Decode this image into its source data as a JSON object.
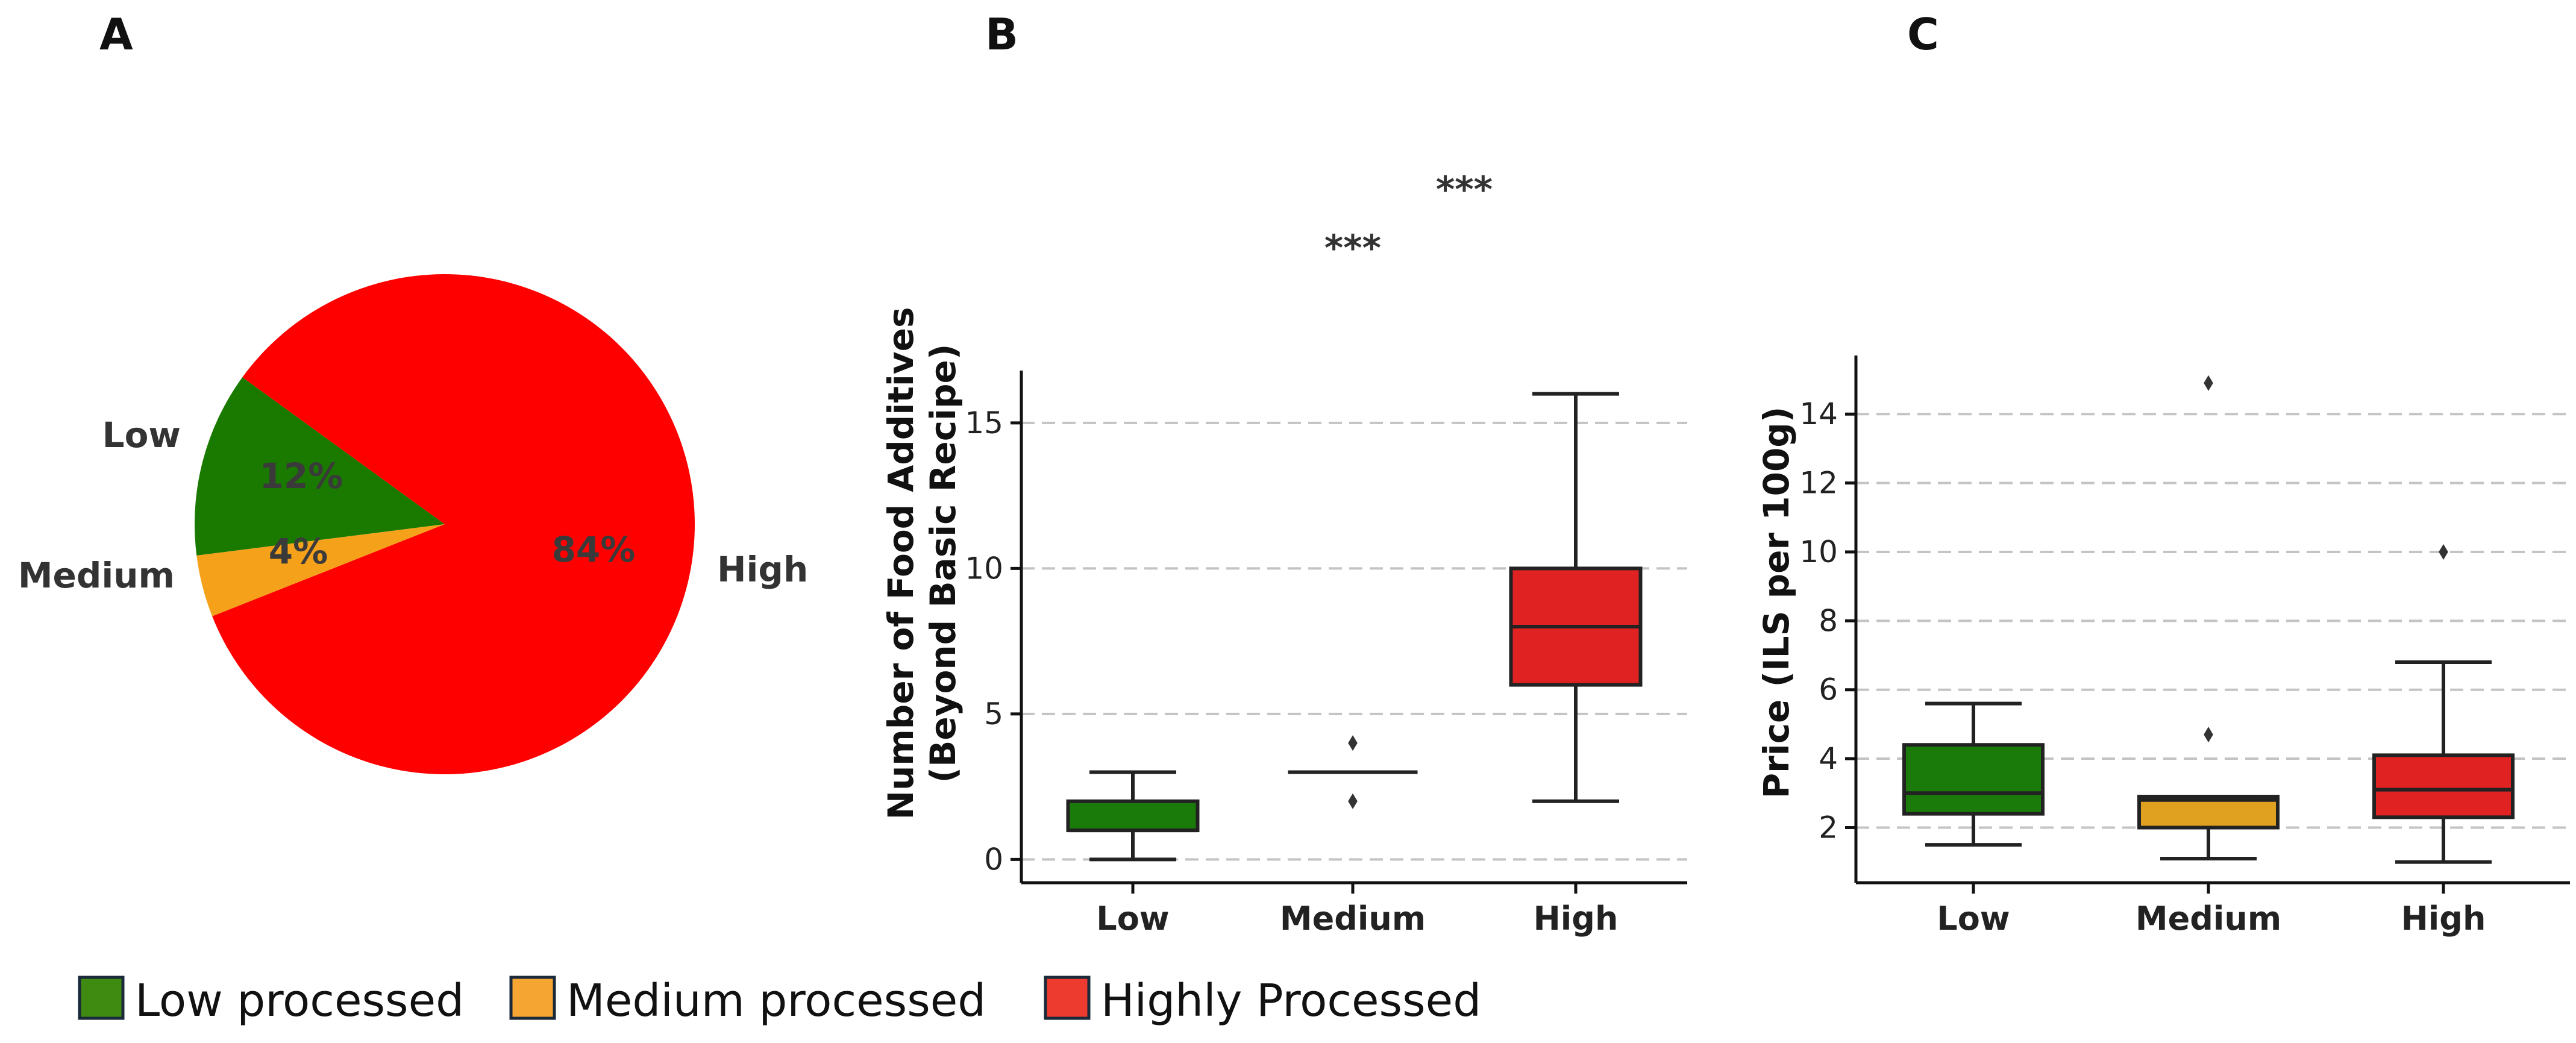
{
  "panel_labels": [
    "A",
    "B",
    "C"
  ],
  "chart_data": [
    {
      "type": "pie",
      "panel": "A",
      "slices": [
        {
          "label": "Low",
          "value": 12,
          "pct_label": "12%",
          "color": "#1a7a00"
        },
        {
          "label": "Medium",
          "value": 4,
          "pct_label": "4%",
          "color": "#f5a21a"
        },
        {
          "label": "High",
          "value": 84,
          "pct_label": "84%",
          "color": "#ff0000"
        }
      ]
    },
    {
      "type": "box",
      "panel": "B",
      "ylabel": "Number of Food Additives",
      "ylabel2": "(Beyond Basic Recipe)",
      "ylim": [
        -0.8,
        16.8
      ],
      "yticks": [
        0,
        5,
        10,
        15
      ],
      "grid": true,
      "categories": [
        "Low",
        "Medium",
        "High"
      ],
      "boxes": [
        {
          "category": "Low",
          "whislo": 0,
          "q1": 1,
          "med": 1,
          "q3": 2,
          "whishi": 3,
          "fliers": [],
          "color": "#1a7a0a"
        },
        {
          "category": "Medium",
          "whislo": 3,
          "q1": 3,
          "med": 3,
          "q3": 3,
          "whishi": 3,
          "fliers": [
            4,
            2
          ],
          "color": "#e0a020"
        },
        {
          "category": "High",
          "whislo": 2,
          "q1": 6,
          "med": 8,
          "q3": 10,
          "whishi": 16,
          "fliers": [],
          "color": "#e02222"
        }
      ],
      "annotations": [
        "***",
        "***"
      ]
    },
    {
      "type": "box",
      "panel": "C",
      "ylabel": "Price (ILS per 100g)",
      "ylim": [
        0.4,
        15.7
      ],
      "yticks": [
        2,
        4,
        6,
        8,
        10,
        12,
        14
      ],
      "grid": true,
      "categories": [
        "Low",
        "Medium",
        "High"
      ],
      "boxes": [
        {
          "category": "Low",
          "whislo": 1.5,
          "q1": 2.4,
          "med": 3.0,
          "q3": 4.4,
          "whishi": 5.6,
          "fliers": [],
          "color": "#1a7a0a"
        },
        {
          "category": "Medium",
          "whislo": 1.1,
          "q1": 2.0,
          "med": 2.8,
          "q3": 2.9,
          "whishi": 2.9,
          "fliers": [
            4.7,
            14.9
          ],
          "color": "#e0a020"
        },
        {
          "category": "High",
          "whislo": 1.0,
          "q1": 2.3,
          "med": 3.1,
          "q3": 4.1,
          "whishi": 6.8,
          "fliers": [
            10.0
          ],
          "color": "#e02222"
        }
      ]
    }
  ],
  "legend": [
    {
      "label": "Low processed",
      "color": "#3f8a10"
    },
    {
      "label": "Medium processed",
      "color": "#f5a532"
    },
    {
      "label": "Highly Processed",
      "color": "#ee3b2f"
    }
  ]
}
